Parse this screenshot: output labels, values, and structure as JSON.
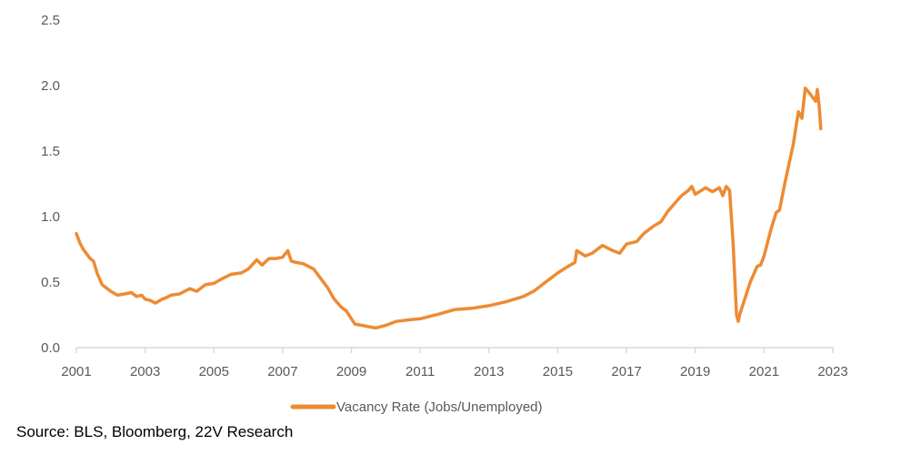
{
  "source_note": "Source: BLS, Bloomberg, 22V Research",
  "chart_data": {
    "type": "line",
    "title": "",
    "xlabel": "",
    "ylabel": "",
    "xlim": [
      2001,
      2023
    ],
    "ylim": [
      0,
      2.5
    ],
    "x_ticks": [
      "2001",
      "2003",
      "2005",
      "2007",
      "2009",
      "2011",
      "2013",
      "2015",
      "2017",
      "2019",
      "2021",
      "2023"
    ],
    "y_ticks": [
      "0.0",
      "0.5",
      "1.0",
      "1.5",
      "2.0",
      "2.5"
    ],
    "grid": false,
    "legend_position": "bottom-center",
    "series": [
      {
        "name": "Vacancy Rate (Jobs/Unemployed)",
        "color": "#ED8B33",
        "x": [
          2001.0,
          2001.1,
          2001.2,
          2001.4,
          2001.5,
          2001.6,
          2001.75,
          2001.85,
          2002.0,
          2002.2,
          2002.4,
          2002.6,
          2002.75,
          2002.9,
          2003.0,
          2003.15,
          2003.3,
          2003.5,
          2003.6,
          2003.75,
          2004.0,
          2004.3,
          2004.5,
          2004.75,
          2005.0,
          2005.2,
          2005.5,
          2005.8,
          2006.0,
          2006.25,
          2006.4,
          2006.6,
          2006.8,
          2007.0,
          2007.15,
          2007.25,
          2007.4,
          2007.6,
          2007.9,
          2008.1,
          2008.3,
          2008.5,
          2008.7,
          2008.85,
          2009.0,
          2009.1,
          2009.3,
          2009.5,
          2009.7,
          2010.0,
          2010.3,
          2010.6,
          2011.0,
          2011.3,
          2011.6,
          2012.0,
          2012.5,
          2013.0,
          2013.5,
          2014.0,
          2014.3,
          2014.6,
          2014.9,
          2015.0,
          2015.3,
          2015.5,
          2015.55,
          2015.8,
          2016.0,
          2016.3,
          2016.6,
          2016.8,
          2017.0,
          2017.3,
          2017.5,
          2017.8,
          2018.0,
          2018.2,
          2018.4,
          2018.6,
          2018.8,
          2018.9,
          2019.0,
          2019.3,
          2019.5,
          2019.7,
          2019.8,
          2019.9,
          2020.0,
          2020.1,
          2020.2,
          2020.25,
          2020.3,
          2020.45,
          2020.6,
          2020.8,
          2020.9,
          2021.0,
          2021.2,
          2021.35,
          2021.45,
          2021.6,
          2021.75,
          2021.85,
          2021.95,
          2022.0,
          2022.1,
          2022.2,
          2022.3,
          2022.5,
          2022.55,
          2022.6,
          2022.65
        ],
        "y": [
          0.87,
          0.8,
          0.75,
          0.68,
          0.66,
          0.57,
          0.48,
          0.46,
          0.43,
          0.4,
          0.41,
          0.42,
          0.39,
          0.4,
          0.37,
          0.36,
          0.34,
          0.37,
          0.38,
          0.4,
          0.41,
          0.45,
          0.43,
          0.48,
          0.49,
          0.52,
          0.56,
          0.57,
          0.6,
          0.67,
          0.63,
          0.68,
          0.68,
          0.69,
          0.74,
          0.66,
          0.65,
          0.64,
          0.6,
          0.53,
          0.46,
          0.37,
          0.31,
          0.28,
          0.22,
          0.18,
          0.17,
          0.16,
          0.15,
          0.17,
          0.2,
          0.21,
          0.22,
          0.24,
          0.26,
          0.29,
          0.3,
          0.32,
          0.35,
          0.39,
          0.43,
          0.49,
          0.55,
          0.57,
          0.62,
          0.65,
          0.74,
          0.7,
          0.72,
          0.78,
          0.74,
          0.72,
          0.79,
          0.81,
          0.87,
          0.93,
          0.96,
          1.04,
          1.1,
          1.16,
          1.2,
          1.23,
          1.17,
          1.22,
          1.19,
          1.22,
          1.16,
          1.23,
          1.2,
          0.8,
          0.25,
          0.2,
          0.26,
          0.38,
          0.5,
          0.62,
          0.63,
          0.7,
          0.9,
          1.03,
          1.05,
          1.25,
          1.43,
          1.55,
          1.72,
          1.8,
          1.75,
          1.98,
          1.95,
          1.88,
          1.97,
          1.85,
          1.67
        ]
      }
    ]
  }
}
